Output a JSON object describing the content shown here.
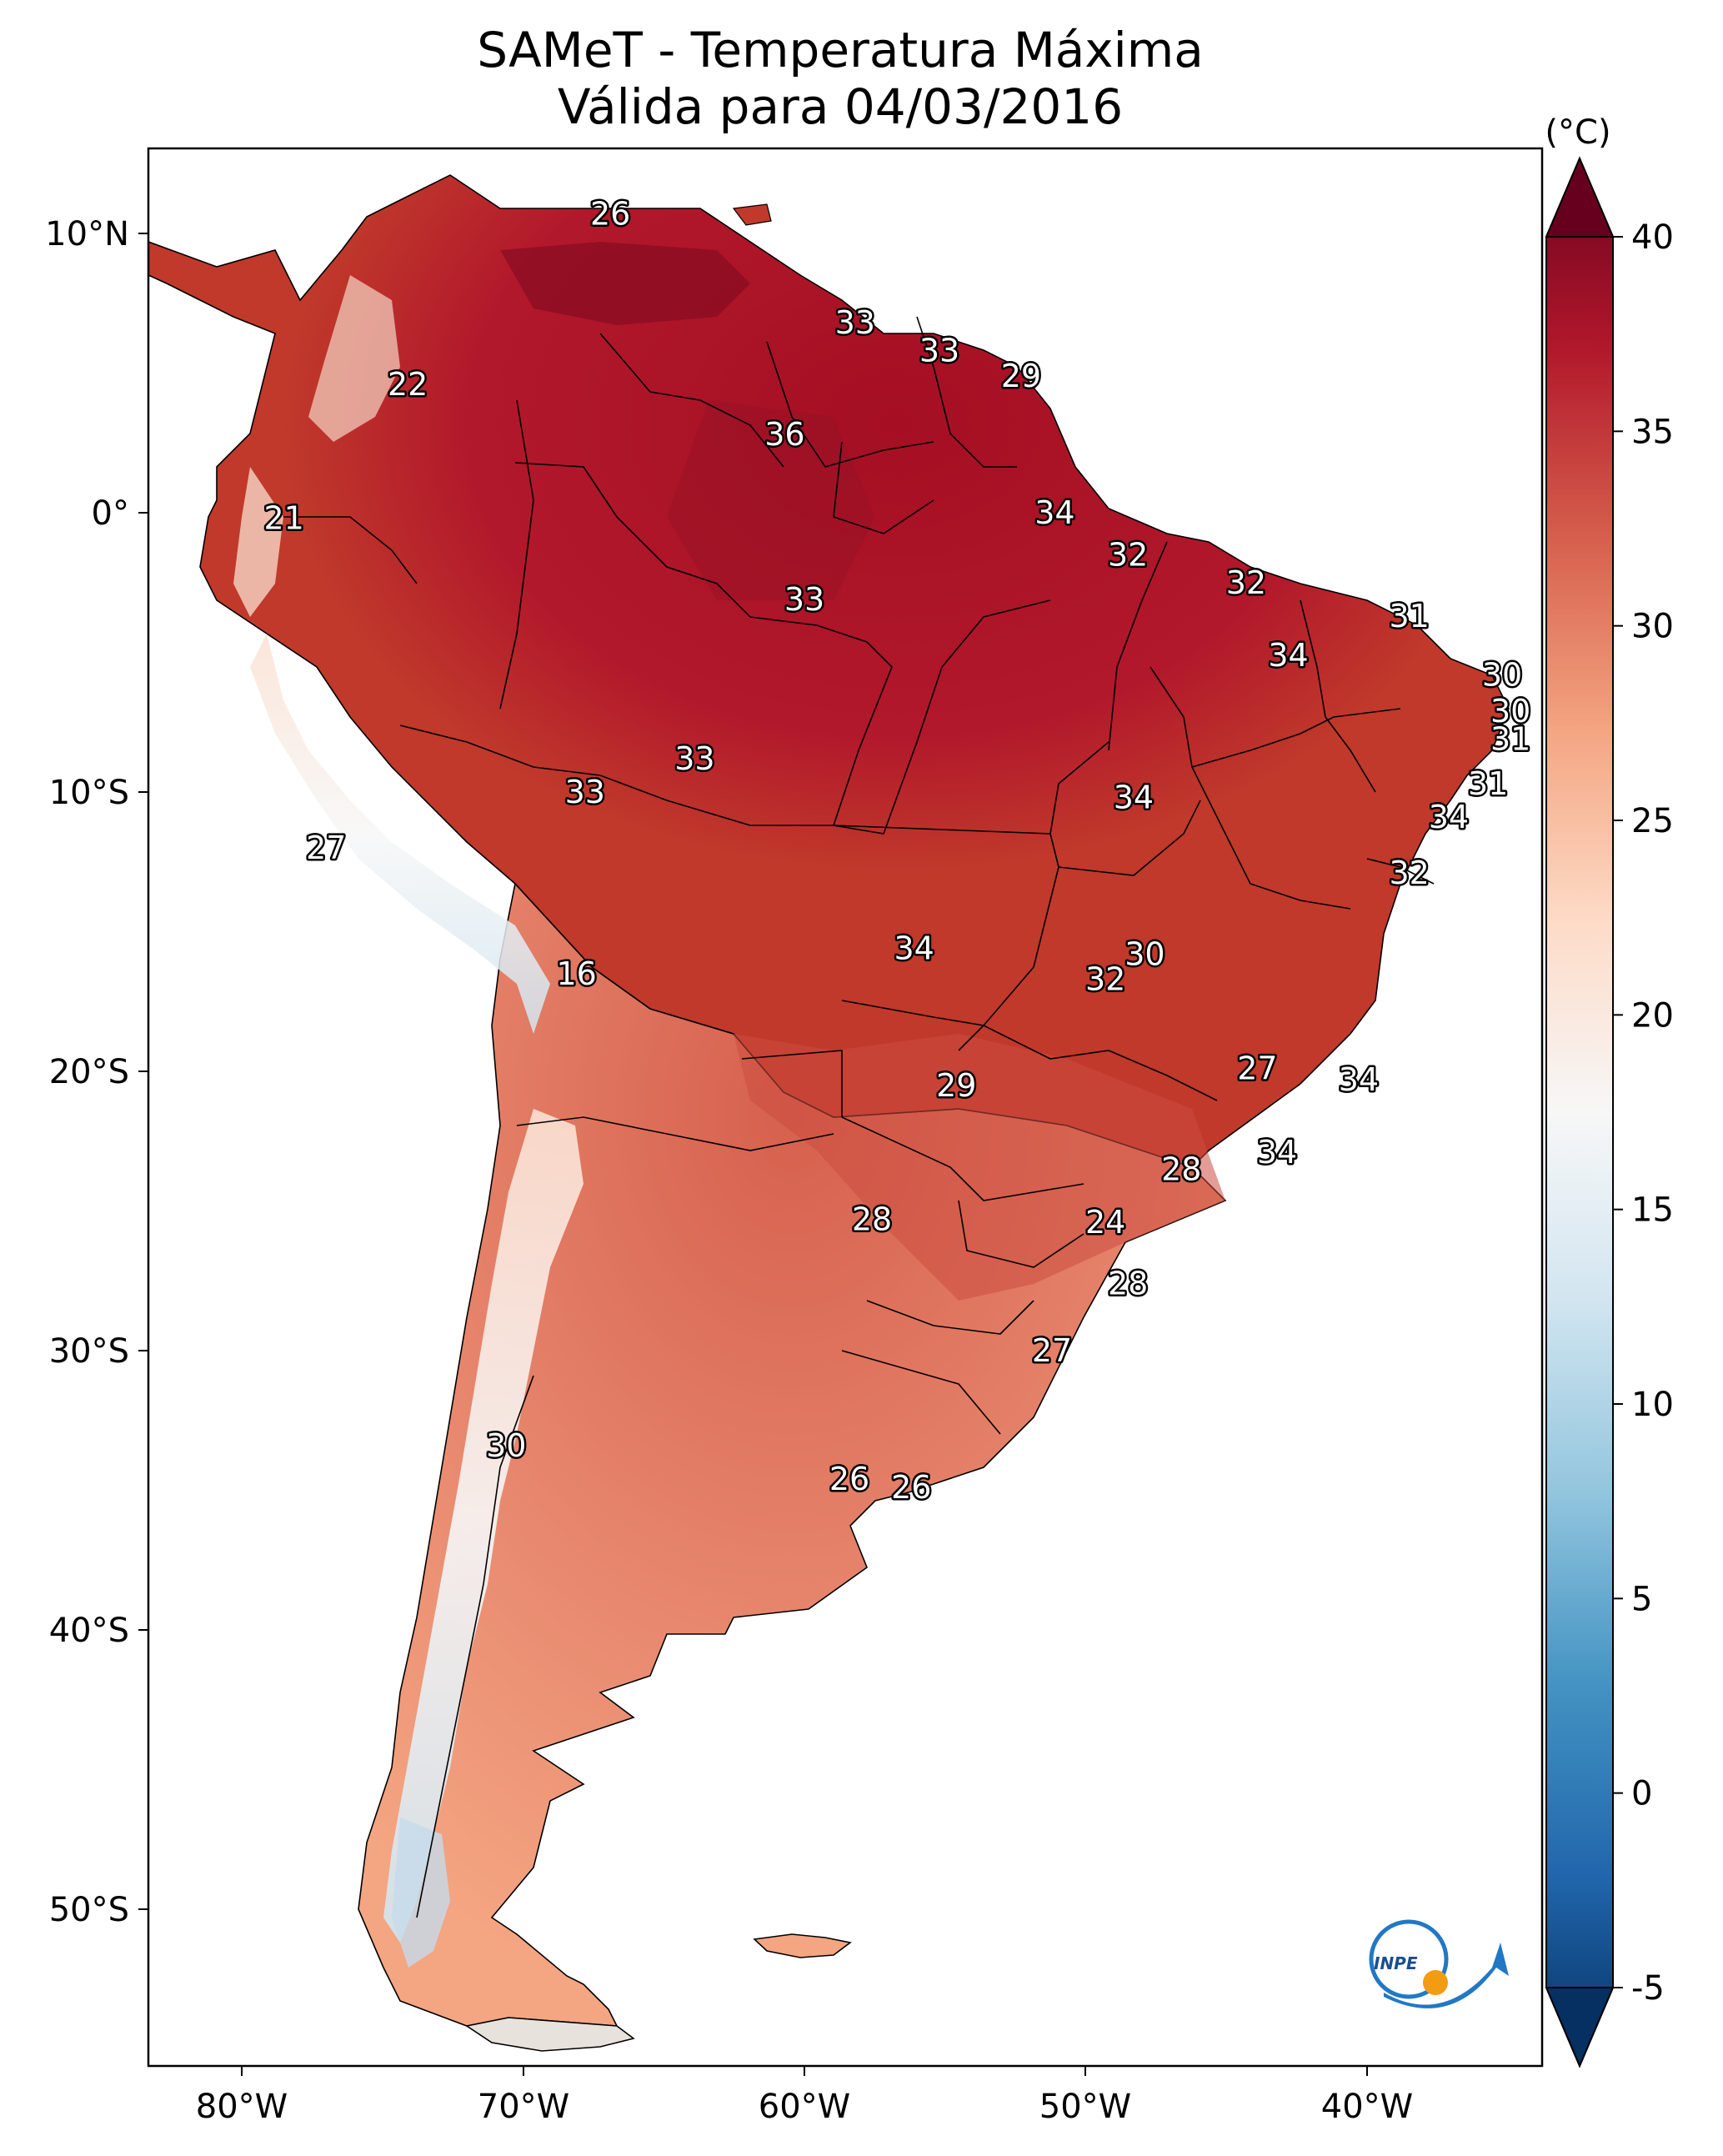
{
  "title": {
    "line1": "SAMeT - Temperatura Máxima",
    "line2": "Válida para 04/03/2016"
  },
  "colorbar": {
    "unit": "(°C)",
    "ticks": [
      "40",
      "35",
      "30",
      "25",
      "20",
      "15",
      "10",
      "5",
      "0",
      "-5"
    ],
    "tick_values": [
      40,
      35,
      30,
      25,
      20,
      15,
      10,
      5,
      0,
      -5
    ],
    "range": [
      -5,
      40
    ],
    "colors": [
      "#053061",
      "#2166ac",
      "#4393c3",
      "#92c5de",
      "#d1e5f0",
      "#f7f7f7",
      "#fddbc7",
      "#f4a582",
      "#d6604d",
      "#b2182b",
      "#67001f"
    ]
  },
  "axes": {
    "lon_labels": [
      "80°W",
      "70°W",
      "60°W",
      "50°W",
      "40°W"
    ],
    "lat_labels": [
      "10°N",
      "0°",
      "10°S",
      "20°S",
      "30°S",
      "40°S",
      "50°S"
    ]
  },
  "ocean_color": "#ffffff",
  "city_values": [
    {
      "value": "26",
      "lat": 10.7,
      "lon": -66.9
    },
    {
      "value": "22",
      "lat": 4.6,
      "lon": -74.1
    },
    {
      "value": "33",
      "lat": 6.8,
      "lon": -58.2
    },
    {
      "value": "33",
      "lat": 5.8,
      "lon": -55.2
    },
    {
      "value": "29",
      "lat": 4.9,
      "lon": -52.3
    },
    {
      "value": "36",
      "lat": 2.8,
      "lon": -60.7
    },
    {
      "value": "21",
      "lat": -0.2,
      "lon": -78.5
    },
    {
      "value": "34",
      "lat": 0.0,
      "lon": -51.1
    },
    {
      "value": "32",
      "lat": -1.5,
      "lon": -48.5
    },
    {
      "value": "32",
      "lat": -2.5,
      "lon": -44.3
    },
    {
      "value": "33",
      "lat": -3.1,
      "lon": -60.0
    },
    {
      "value": "31",
      "lat": -3.7,
      "lon": -38.5
    },
    {
      "value": "34",
      "lat": -5.1,
      "lon": -42.8
    },
    {
      "value": "30",
      "lat": -5.8,
      "lon": -35.2
    },
    {
      "value": "30",
      "lat": -7.1,
      "lon": -34.9
    },
    {
      "value": "31",
      "lat": -8.1,
      "lon": -34.9
    },
    {
      "value": "33",
      "lat": -8.8,
      "lon": -63.9
    },
    {
      "value": "33",
      "lat": -10.0,
      "lon": -67.8
    },
    {
      "value": "31",
      "lat": -9.7,
      "lon": -35.7
    },
    {
      "value": "34",
      "lat": -10.2,
      "lon": -48.3
    },
    {
      "value": "34",
      "lat": -10.9,
      "lon": -37.1
    },
    {
      "value": "27",
      "lat": -12.0,
      "lon": -77.0
    },
    {
      "value": "32",
      "lat": -12.9,
      "lon": -38.5
    },
    {
      "value": "34",
      "lat": -15.6,
      "lon": -56.1
    },
    {
      "value": "30",
      "lat": -15.8,
      "lon": -47.9
    },
    {
      "value": "32",
      "lat": -16.7,
      "lon": -49.3
    },
    {
      "value": "16",
      "lat": -16.5,
      "lon": -68.1
    },
    {
      "value": "27",
      "lat": -19.9,
      "lon": -43.9
    },
    {
      "value": "34",
      "lat": -20.3,
      "lon": -40.3
    },
    {
      "value": "29",
      "lat": -20.5,
      "lon": -54.6
    },
    {
      "value": "34",
      "lat": -22.9,
      "lon": -43.2
    },
    {
      "value": "28",
      "lat": -23.5,
      "lon": -46.6
    },
    {
      "value": "28",
      "lat": -25.3,
      "lon": -57.6
    },
    {
      "value": "24",
      "lat": -25.4,
      "lon": -49.3
    },
    {
      "value": "28",
      "lat": -27.6,
      "lon": -48.5
    },
    {
      "value": "27",
      "lat": -30.0,
      "lon": -51.2
    },
    {
      "value": "30",
      "lat": -33.4,
      "lon": -70.6
    },
    {
      "value": "26",
      "lat": -34.6,
      "lon": -58.4
    },
    {
      "value": "26",
      "lat": -34.9,
      "lon": -56.2
    }
  ]
}
